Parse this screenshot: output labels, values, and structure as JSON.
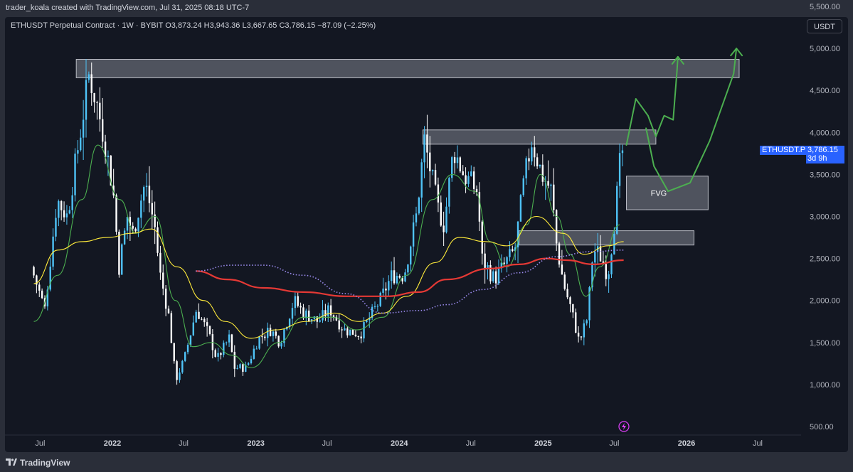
{
  "header": {
    "text": "trader_koala created with TradingView.com, Jul 31, 2025 08:18 UTC-7"
  },
  "legend": {
    "text": "ETHUSDT Perpetual Contract · 1W · BYBIT  O3,873.24  H3,943.36  L3,667.65  C3,786.15  −87.09 (−2.25%)"
  },
  "currency_button": "USDT",
  "last_price": {
    "symbol": "ETHUSDT.P",
    "price": "3,786.15",
    "countdown": "3d 9h",
    "value": 3786.15
  },
  "footer": {
    "brand": "TradingView"
  },
  "colors": {
    "background": "#131722",
    "up": "#4fc3f7",
    "down": "#ffffff",
    "ma_fast": "#4caf50",
    "ma_mid": "#ffeb3b",
    "ma_slow": "#e53935",
    "ma_dotted": "#9c8cf0",
    "zone": "#d1d4dc",
    "annotation": "#4caf50",
    "price_tag": "#2962ff"
  },
  "chart_data": {
    "type": "candlestick",
    "symbol": "ETHUSDT Perpetual Contract",
    "interval": "1W",
    "exchange": "BYBIT",
    "ohlc_last": {
      "open": 3873.24,
      "high": 3943.36,
      "low": 3667.65,
      "close": 3786.15,
      "change": -87.09,
      "change_pct": -2.25
    },
    "y_axis": {
      "ticks": [
        500,
        1000,
        1500,
        2000,
        2500,
        3000,
        3500,
        4000,
        4500,
        5000,
        5500
      ],
      "tick_labels": [
        "500.00",
        "1,000.00",
        "1,500.00",
        "2,000.00",
        "2,500.00",
        "3,000.00",
        "3,500.00",
        "4,000.00",
        "4,500.00",
        "5,000.00",
        "5,500.00"
      ],
      "ylim": [
        400,
        5900
      ],
      "scale": "linear"
    },
    "x_axis": {
      "labels": [
        "Jul",
        "2022",
        "Jul",
        "2023",
        "Jul",
        "2024",
        "Jul",
        "2025",
        "Jul",
        "2026",
        "Jul"
      ],
      "dates": [
        "2021-07",
        "2022-01",
        "2022-07",
        "2023-01",
        "2023-07",
        "2024-01",
        "2024-07",
        "2025-01",
        "2025-07",
        "2026-01",
        "2026-07"
      ],
      "year_labels": [
        "2022",
        "2023",
        "2024",
        "2025",
        "2026"
      ]
    },
    "price_path": [
      [
        "2021-06-15",
        2400
      ],
      [
        "2021-07-20",
        1900
      ],
      [
        "2021-08-20",
        3200
      ],
      [
        "2021-09-15",
        3000
      ],
      [
        "2021-10-15",
        3900
      ],
      [
        "2021-11-10",
        4700
      ],
      [
        "2021-12-01",
        4300
      ],
      [
        "2021-12-20",
        3900
      ],
      [
        "2022-01-10",
        3300
      ],
      [
        "2022-01-25",
        2400
      ],
      [
        "2022-02-15",
        3000
      ],
      [
        "2022-03-01",
        2800
      ],
      [
        "2022-04-01",
        3400
      ],
      [
        "2022-04-25",
        2900
      ],
      [
        "2022-05-10",
        2300
      ],
      [
        "2022-06-01",
        1800
      ],
      [
        "2022-06-18",
        1050
      ],
      [
        "2022-07-10",
        1300
      ],
      [
        "2022-08-10",
        1900
      ],
      [
        "2022-09-10",
        1600
      ],
      [
        "2022-10-01",
        1300
      ],
      [
        "2022-11-01",
        1550
      ],
      [
        "2022-11-15",
        1200
      ],
      [
        "2022-12-15",
        1200
      ],
      [
        "2023-01-15",
        1550
      ],
      [
        "2023-02-15",
        1650
      ],
      [
        "2023-03-10",
        1500
      ],
      [
        "2023-04-15",
        2000
      ],
      [
        "2023-05-10",
        1850
      ],
      [
        "2023-06-15",
        1750
      ],
      [
        "2023-07-15",
        1900
      ],
      [
        "2023-08-20",
        1650
      ],
      [
        "2023-10-01",
        1600
      ],
      [
        "2023-10-25",
        1800
      ],
      [
        "2023-11-20",
        2000
      ],
      [
        "2023-12-20",
        2300
      ],
      [
        "2024-01-20",
        2300
      ],
      [
        "2024-02-20",
        3000
      ],
      [
        "2024-03-12",
        3900
      ],
      [
        "2024-04-15",
        3100
      ],
      [
        "2024-05-01",
        2900
      ],
      [
        "2024-05-25",
        3800
      ],
      [
        "2024-06-20",
        3500
      ],
      [
        "2024-07-25",
        3300
      ],
      [
        "2024-08-05",
        2500
      ],
      [
        "2024-09-06",
        2250
      ],
      [
        "2024-10-05",
        2450
      ],
      [
        "2024-10-28",
        2600
      ],
      [
        "2024-11-20",
        3400
      ],
      [
        "2024-12-10",
        3900
      ],
      [
        "2025-01-05",
        3500
      ],
      [
        "2025-01-30",
        3300
      ],
      [
        "2025-02-10",
        2700
      ],
      [
        "2025-03-01",
        2200
      ],
      [
        "2025-03-20",
        1900
      ],
      [
        "2025-04-10",
        1500
      ],
      [
        "2025-05-01",
        1800
      ],
      [
        "2025-05-15",
        2600
      ],
      [
        "2025-06-01",
        2550
      ],
      [
        "2025-06-22",
        2300
      ],
      [
        "2025-07-10",
        3000
      ],
      [
        "2025-07-25",
        3750
      ]
    ],
    "moving_averages": [
      {
        "name": "MA fast",
        "color": "#4caf50",
        "points": [
          [
            "2021-06-15",
            1750
          ],
          [
            "2021-08-15",
            2300
          ],
          [
            "2021-10-15",
            3200
          ],
          [
            "2021-11-25",
            3850
          ],
          [
            "2022-01-20",
            3200
          ],
          [
            "2022-03-01",
            2800
          ],
          [
            "2022-04-20",
            3000
          ],
          [
            "2022-06-10",
            2000
          ],
          [
            "2022-07-25",
            1450
          ],
          [
            "2022-09-10",
            1500
          ],
          [
            "2022-11-01",
            1350
          ],
          [
            "2022-12-20",
            1200
          ],
          [
            "2023-03-01",
            1500
          ],
          [
            "2023-05-01",
            1800
          ],
          [
            "2023-07-15",
            1800
          ],
          [
            "2023-09-15",
            1650
          ],
          [
            "2023-11-20",
            1800
          ],
          [
            "2024-01-20",
            2300
          ],
          [
            "2024-03-25",
            3200
          ],
          [
            "2024-05-15",
            3500
          ],
          [
            "2024-07-10",
            3300
          ],
          [
            "2024-08-20",
            2700
          ],
          [
            "2024-10-01",
            2400
          ],
          [
            "2024-11-20",
            2900
          ],
          [
            "2024-12-25",
            3500
          ],
          [
            "2025-02-05",
            3000
          ],
          [
            "2025-03-10",
            2550
          ],
          [
            "2025-04-20",
            2050
          ],
          [
            "2025-05-25",
            2400
          ],
          [
            "2025-07-15",
            2900
          ]
        ]
      },
      {
        "name": "MA mid",
        "color": "#ffeb3b",
        "points": [
          [
            "2021-06-15",
            2200
          ],
          [
            "2021-08-15",
            2600
          ],
          [
            "2021-10-15",
            2700
          ],
          [
            "2021-12-20",
            2750
          ],
          [
            "2022-02-20",
            2800
          ],
          [
            "2022-04-10",
            2850
          ],
          [
            "2022-06-15",
            2400
          ],
          [
            "2022-08-20",
            2000
          ],
          [
            "2022-10-15",
            1750
          ],
          [
            "2022-12-20",
            1550
          ],
          [
            "2023-02-20",
            1650
          ],
          [
            "2023-05-10",
            1750
          ],
          [
            "2023-07-20",
            1850
          ],
          [
            "2023-09-20",
            1750
          ],
          [
            "2023-11-20",
            1850
          ],
          [
            "2024-01-20",
            2050
          ],
          [
            "2024-04-01",
            2450
          ],
          [
            "2024-06-01",
            2750
          ],
          [
            "2024-08-10",
            2700
          ],
          [
            "2024-10-01",
            2650
          ],
          [
            "2024-12-15",
            3000
          ],
          [
            "2025-02-20",
            2800
          ],
          [
            "2025-04-15",
            2550
          ],
          [
            "2025-06-15",
            2650
          ],
          [
            "2025-07-25",
            2700
          ]
        ]
      },
      {
        "name": "MA slow",
        "color": "#e53935",
        "points": [
          [
            "2022-08-01",
            2350
          ],
          [
            "2022-10-20",
            2250
          ],
          [
            "2023-01-20",
            2150
          ],
          [
            "2023-05-01",
            2100
          ],
          [
            "2023-08-20",
            2050
          ],
          [
            "2023-12-01",
            2050
          ],
          [
            "2024-02-20",
            2100
          ],
          [
            "2024-05-01",
            2250
          ],
          [
            "2024-08-20",
            2380
          ],
          [
            "2024-11-01",
            2430
          ],
          [
            "2025-01-10",
            2500
          ],
          [
            "2025-03-01",
            2480
          ],
          [
            "2025-05-10",
            2430
          ],
          [
            "2025-07-25",
            2480
          ]
        ]
      },
      {
        "name": "MA dotted",
        "color": "#9c8cf0",
        "points": [
          [
            "2022-08-01",
            2350
          ],
          [
            "2022-11-01",
            2420
          ],
          [
            "2023-01-20",
            2420
          ],
          [
            "2023-05-01",
            2300
          ],
          [
            "2023-08-20",
            2080
          ],
          [
            "2023-11-20",
            1850
          ],
          [
            "2024-02-20",
            1880
          ],
          [
            "2024-05-01",
            1950
          ],
          [
            "2024-08-01",
            2130
          ],
          [
            "2024-11-01",
            2330
          ],
          [
            "2025-02-01",
            2520
          ],
          [
            "2025-05-01",
            2580
          ],
          [
            "2025-07-25",
            2600
          ]
        ]
      }
    ],
    "zones": [
      {
        "from": "2021-10-01",
        "to": "2026-05-15",
        "low": 4650,
        "high": 4870
      },
      {
        "from": "2024-03-01",
        "to": "2025-10-15",
        "low": 3860,
        "high": 4030
      },
      {
        "label": "FVG",
        "from": "2025-08-01",
        "to": "2026-02-25",
        "low": 3080,
        "high": 3480
      },
      {
        "from": "2024-11-01",
        "to": "2026-01-20",
        "low": 2660,
        "high": 2830
      }
    ],
    "annotations": [
      {
        "type": "projection-arrow",
        "points": [
          [
            "2025-08-01",
            3850
          ],
          [
            "2025-08-25",
            4400
          ],
          [
            "2025-09-25",
            4200
          ],
          [
            "2025-10-15",
            3950
          ],
          [
            "2025-11-05",
            4200
          ],
          [
            "2025-11-28",
            4150
          ],
          [
            "2025-12-08",
            4750
          ],
          [
            "2025-12-10",
            4900
          ]
        ]
      },
      {
        "type": "projection-arrow",
        "points": [
          [
            "2025-09-20",
            4050
          ],
          [
            "2025-10-10",
            3600
          ],
          [
            "2025-11-15",
            3300
          ],
          [
            "2026-01-10",
            3400
          ],
          [
            "2026-03-01",
            3900
          ],
          [
            "2026-05-01",
            4700
          ],
          [
            "2026-05-08",
            5000
          ]
        ]
      }
    ]
  }
}
